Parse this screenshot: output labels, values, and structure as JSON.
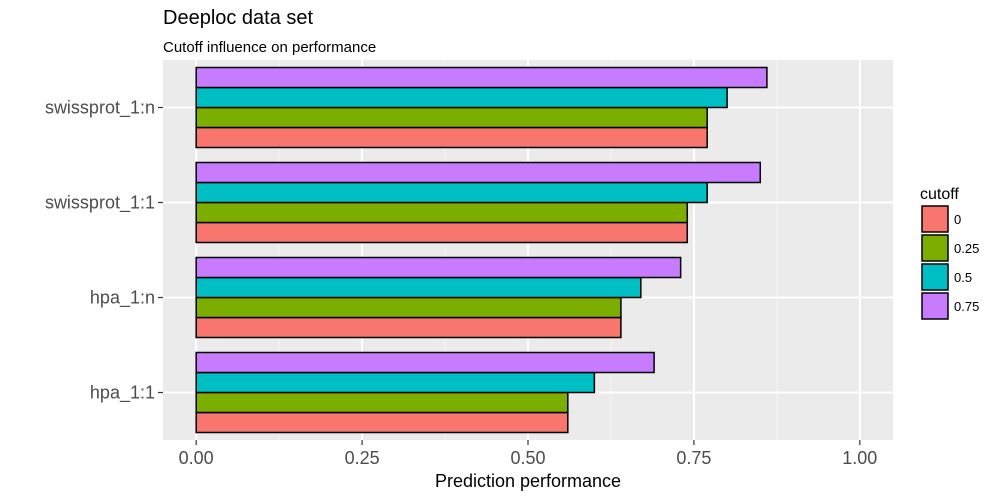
{
  "chart_data": {
    "type": "bar",
    "orientation": "horizontal",
    "title": "Deeploc data set",
    "subtitle": "Cutoff influence on performance",
    "xlabel": "Prediction performance",
    "ylabel": "",
    "categories": [
      "hpa_1:1",
      "hpa_1:n",
      "swissprot_1:1",
      "swissprot_1:n"
    ],
    "xlim": [
      -0.05,
      1.05
    ],
    "x_ticks": [
      0.0,
      0.25,
      0.5,
      0.75,
      1.0
    ],
    "x_tick_labels": [
      "0.00",
      "0.25",
      "0.50",
      "0.75",
      "1.00"
    ],
    "grid": true,
    "legend": {
      "title": "cutoff",
      "position": "right"
    },
    "series": [
      {
        "name": "0",
        "color": "#F8766D",
        "values": [
          0.56,
          0.64,
          0.74,
          0.77
        ]
      },
      {
        "name": "0.25",
        "color": "#7CAE00",
        "values": [
          0.56,
          0.64,
          0.74,
          0.77
        ]
      },
      {
        "name": "0.5",
        "color": "#00BFC4",
        "values": [
          0.6,
          0.67,
          0.77,
          0.8
        ]
      },
      {
        "name": "0.75",
        "color": "#C77CFF",
        "values": [
          0.69,
          0.73,
          0.85,
          0.86
        ]
      }
    ]
  }
}
